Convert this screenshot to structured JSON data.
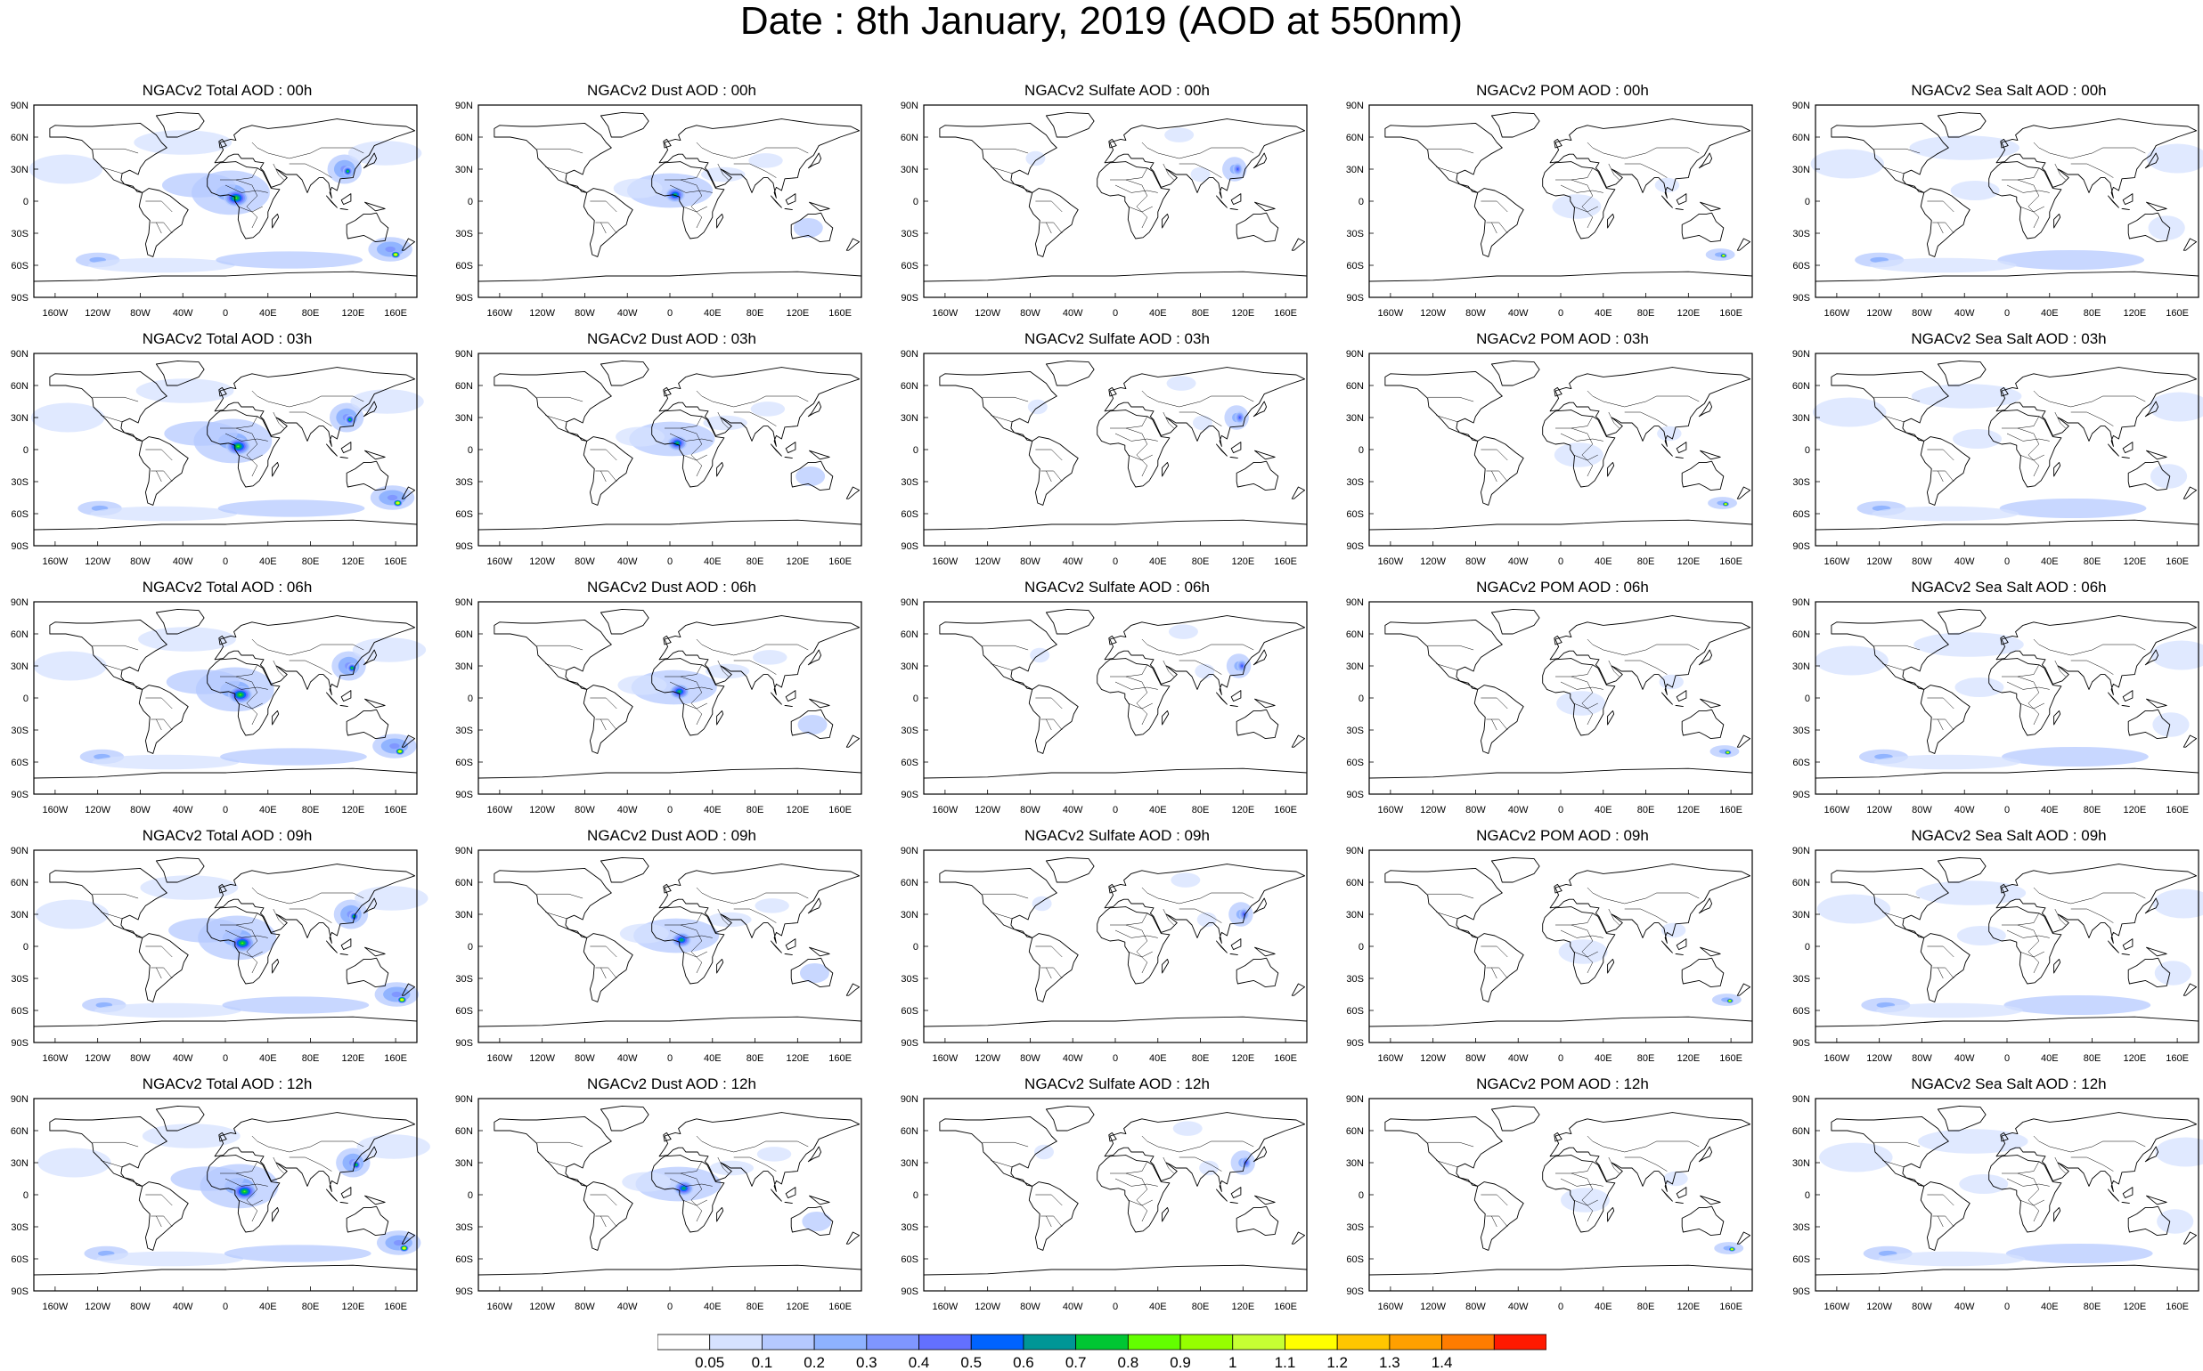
{
  "title": "Date : 8th January, 2019 (AOD at 550nm)",
  "panels": [
    [
      "NGACv2 Total AOD : 00h",
      "NGACv2 Dust AOD : 00h",
      "NGACv2 Sulfate AOD : 00h",
      "NGACv2 POM AOD : 00h",
      "NGACv2 Sea Salt AOD : 00h"
    ],
    [
      "NGACv2 Total AOD : 03h",
      "NGACv2 Dust AOD : 03h",
      "NGACv2 Sulfate AOD : 03h",
      "NGACv2 POM AOD : 03h",
      "NGACv2 Sea Salt AOD : 03h"
    ],
    [
      "NGACv2 Total AOD : 06h",
      "NGACv2 Dust AOD : 06h",
      "NGACv2 Sulfate AOD : 06h",
      "NGACv2 POM AOD : 06h",
      "NGACv2 Sea Salt AOD : 06h"
    ],
    [
      "NGACv2 Total AOD : 09h",
      "NGACv2 Dust AOD : 09h",
      "NGACv2 Sulfate AOD : 09h",
      "NGACv2 POM AOD : 09h",
      "NGACv2 Sea Salt  AOD : 09h"
    ],
    [
      "NGACv2 Total AOD :  12h",
      "NGACv2 Dust AOD : 12h",
      "NGACv2 Sulfate AOD : 12h",
      "NGACv2 POM  AOD : 12h",
      "NGACv2 Sea Salt  AOD : 12h"
    ]
  ],
  "lat_labels": [
    "90N",
    "60N",
    "30N",
    "0",
    "30S",
    "60S",
    "90S"
  ],
  "lon_labels": [
    "160W",
    "120W",
    "80W",
    "40W",
    "0",
    "40E",
    "80E",
    "120E",
    "160E"
  ],
  "colorbar": {
    "labels": [
      "0.05",
      "0.1",
      "0.2",
      "0.3",
      "0.4",
      "0.5",
      "0.6",
      "0.7",
      "0.8",
      "0.9",
      "1",
      "1.1",
      "1.2",
      "1.3",
      "1.4"
    ],
    "colors": [
      "#ffffff",
      "#d6e2ff",
      "#b5c9ff",
      "#8eb2ff",
      "#7f96ff",
      "#6370ff",
      "#0063ff",
      "#009696",
      "#00c633",
      "#63ff00",
      "#96ff00",
      "#c6ff33",
      "#ffff00",
      "#ffc600",
      "#ffa000",
      "#ff7c00",
      "#ff1900"
    ]
  },
  "plumes": {
    "total": [
      {
        "lon": 5,
        "lat": 8,
        "rx": 32,
        "ry": 18,
        "level": 3
      },
      {
        "lon": 10,
        "lat": 3,
        "rx": 10,
        "ry": 7,
        "level": 9
      },
      {
        "lon": -25,
        "lat": 15,
        "rx": 30,
        "ry": 10,
        "level": 2
      },
      {
        "lon": 112,
        "lat": 30,
        "rx": 14,
        "ry": 12,
        "level": 4
      },
      {
        "lon": 115,
        "lat": 28,
        "rx": 4,
        "ry": 4,
        "level": 9
      },
      {
        "lon": 155,
        "lat": -45,
        "rx": 18,
        "ry": 10,
        "level": 4
      },
      {
        "lon": 160,
        "lat": -50,
        "rx": 4,
        "ry": 3,
        "level": 14
      },
      {
        "lon": -120,
        "lat": -55,
        "rx": 18,
        "ry": 6,
        "level": 3
      },
      {
        "lon": -60,
        "lat": -60,
        "rx": 60,
        "ry": 6,
        "level": 1
      },
      {
        "lon": 60,
        "lat": -55,
        "rx": 60,
        "ry": 7,
        "level": 2
      },
      {
        "lon": -40,
        "lat": 55,
        "rx": 40,
        "ry": 10,
        "level": 1
      },
      {
        "lon": 150,
        "lat": 45,
        "rx": 30,
        "ry": 10,
        "level": 1
      },
      {
        "lon": -150,
        "lat": 30,
        "rx": 30,
        "ry": 12,
        "level": 1
      }
    ],
    "dust": [
      {
        "lon": 0,
        "lat": 10,
        "rx": 35,
        "ry": 14,
        "level": 2
      },
      {
        "lon": 5,
        "lat": 6,
        "rx": 8,
        "ry": 6,
        "level": 8
      },
      {
        "lon": -30,
        "lat": 12,
        "rx": 20,
        "ry": 8,
        "level": 1
      },
      {
        "lon": 50,
        "lat": 25,
        "rx": 18,
        "ry": 6,
        "level": 1
      },
      {
        "lon": 130,
        "lat": -25,
        "rx": 12,
        "ry": 8,
        "level": 2
      },
      {
        "lon": 90,
        "lat": 38,
        "rx": 14,
        "ry": 6,
        "level": 1
      }
    ],
    "sulfate": [
      {
        "lon": 112,
        "lat": 30,
        "rx": 10,
        "ry": 10,
        "level": 3
      },
      {
        "lon": 115,
        "lat": 30,
        "rx": 4,
        "ry": 5,
        "level": 6
      },
      {
        "lon": 80,
        "lat": 25,
        "rx": 8,
        "ry": 6,
        "level": 1
      },
      {
        "lon": -75,
        "lat": 40,
        "rx": 8,
        "ry": 6,
        "level": 1
      },
      {
        "lon": 60,
        "lat": 62,
        "rx": 12,
        "ry": 6,
        "level": 1
      }
    ],
    "pom": [
      {
        "lon": 15,
        "lat": -5,
        "rx": 20,
        "ry": 10,
        "level": 1
      },
      {
        "lon": 100,
        "lat": 15,
        "rx": 10,
        "ry": 6,
        "level": 1
      },
      {
        "lon": 150,
        "lat": -50,
        "rx": 12,
        "ry": 5,
        "level": 3
      },
      {
        "lon": 153,
        "lat": -51,
        "rx": 3,
        "ry": 2,
        "level": 14
      }
    ],
    "seasalt": [
      {
        "lon": -40,
        "lat": 50,
        "rx": 45,
        "ry": 10,
        "level": 1
      },
      {
        "lon": -150,
        "lat": 35,
        "rx": 30,
        "ry": 12,
        "level": 1
      },
      {
        "lon": 160,
        "lat": 40,
        "rx": 25,
        "ry": 12,
        "level": 1
      },
      {
        "lon": -120,
        "lat": -55,
        "rx": 20,
        "ry": 6,
        "level": 3
      },
      {
        "lon": 60,
        "lat": -55,
        "rx": 60,
        "ry": 8,
        "level": 2
      },
      {
        "lon": -60,
        "lat": -60,
        "rx": 60,
        "ry": 6,
        "level": 1
      },
      {
        "lon": -30,
        "lat": 10,
        "rx": 20,
        "ry": 8,
        "level": 1
      },
      {
        "lon": 150,
        "lat": -25,
        "rx": 15,
        "ry": 10,
        "level": 1
      }
    ]
  }
}
